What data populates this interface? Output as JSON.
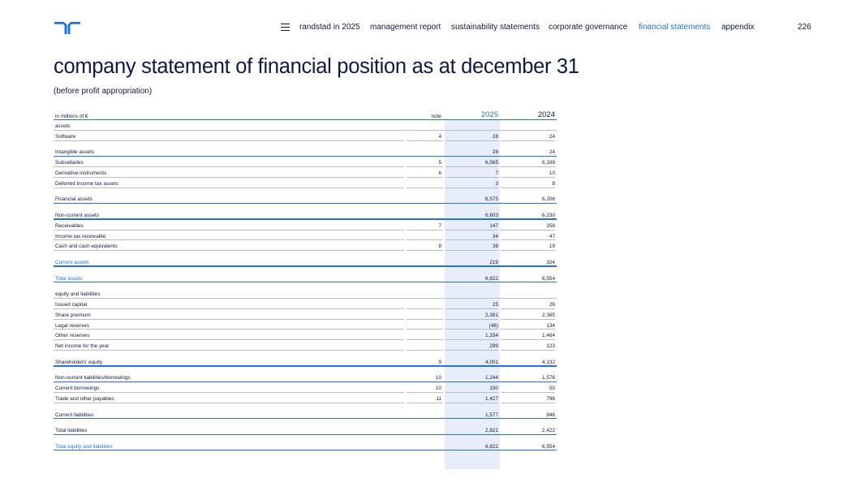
{
  "nav": {
    "items": [
      "randstad in 2025",
      "management report",
      "sustainability statements",
      "corporate governance",
      "financial statements",
      "appendix"
    ],
    "active_index": 4,
    "page_number": "226"
  },
  "title": "company statement of financial position as at december 31",
  "subtitle": "(before profit appropriation)",
  "table": {
    "unit_label": "in millions of €",
    "note_header": "note",
    "year_current": "2025",
    "year_prior": "2024",
    "rows": [
      {
        "label": "assets",
        "note": "",
        "v2025": "",
        "v2024": "",
        "kind": "section"
      },
      {
        "label": "Software",
        "note": "4",
        "v2025": "28",
        "v2024": "24",
        "kind": "item"
      },
      {
        "label": "Intangible assets",
        "note": "",
        "v2025": "28",
        "v2024": "24",
        "kind": "total",
        "gap": true
      },
      {
        "label": "Subsidiaries",
        "note": "5",
        "v2025": "6,565",
        "v2024": "6,188",
        "kind": "item"
      },
      {
        "label": "Derivative instruments",
        "note": "6",
        "v2025": "7",
        "v2024": "10",
        "kind": "item"
      },
      {
        "label": "Deferred income tax assets",
        "note": "",
        "v2025": "3",
        "v2024": "8",
        "kind": "item"
      },
      {
        "label": "Financial assets",
        "note": "",
        "v2025": "6,575",
        "v2024": "6,206",
        "kind": "total",
        "gap": true
      },
      {
        "label": "Non-current assets",
        "note": "",
        "v2025": "6,603",
        "v2024": "6,230",
        "kind": "total",
        "gap": true
      },
      {
        "label": "Receivables",
        "note": "7",
        "v2025": "147",
        "v2024": "258",
        "kind": "item"
      },
      {
        "label": "Income tax receivable",
        "note": "",
        "v2025": "34",
        "v2024": "47",
        "kind": "item"
      },
      {
        "label": "Cash and cash equivalents",
        "note": "8",
        "v2025": "38",
        "v2024": "19",
        "kind": "item"
      },
      {
        "label": "Current assets",
        "note": "",
        "v2025": "219",
        "v2024": "324",
        "kind": "total",
        "blue": true,
        "gap": true
      },
      {
        "label": "Total assets",
        "note": "",
        "v2025": "6,822",
        "v2024": "6,554",
        "kind": "total",
        "blue": true,
        "gap": true
      },
      {
        "label": "equity and liabilities",
        "note": "",
        "v2025": "",
        "v2024": "",
        "kind": "section",
        "gap": true
      },
      {
        "label": "Issued capital",
        "note": "",
        "v2025": "25",
        "v2024": "26",
        "kind": "item"
      },
      {
        "label": "Share premium",
        "note": "",
        "v2025": "2,391",
        "v2024": "2,385",
        "kind": "item"
      },
      {
        "label": "Legal reserves",
        "note": "",
        "v2025": "(48)",
        "v2024": "134",
        "kind": "item"
      },
      {
        "label": "Other reserves",
        "note": "",
        "v2025": "1,334",
        "v2024": "1,464",
        "kind": "item"
      },
      {
        "label": "Net income for the year",
        "note": "",
        "v2025": "299",
        "v2024": "123",
        "kind": "item"
      },
      {
        "label": "Shareholders' equity",
        "note": "9",
        "v2025": "4,001",
        "v2024": "4,132",
        "kind": "total",
        "gap": true
      },
      {
        "label": "Non-current liabilities/borrowings",
        "note": "10",
        "v2025": "1,244",
        "v2024": "1,576",
        "kind": "total",
        "gap": true
      },
      {
        "label": "Current borrowings",
        "note": "10",
        "v2025": "150",
        "v2024": "50",
        "kind": "item"
      },
      {
        "label": "Trade and other payables",
        "note": "11",
        "v2025": "1,427",
        "v2024": "796",
        "kind": "item"
      },
      {
        "label": "Current liabilities",
        "note": "",
        "v2025": "1,577",
        "v2024": "846",
        "kind": "total",
        "gap": true
      },
      {
        "label": "Total liabilities",
        "note": "",
        "v2025": "2,821",
        "v2024": "2,422",
        "kind": "total",
        "gap": true
      },
      {
        "label": "Total equity and liabilities",
        "note": "",
        "v2025": "6,822",
        "v2024": "6,554",
        "kind": "total",
        "blue": true,
        "gap": true
      }
    ]
  },
  "colors": {
    "brand_blue": "#2175d9",
    "navy": "#0f1941",
    "shade": "#e8eef9"
  }
}
